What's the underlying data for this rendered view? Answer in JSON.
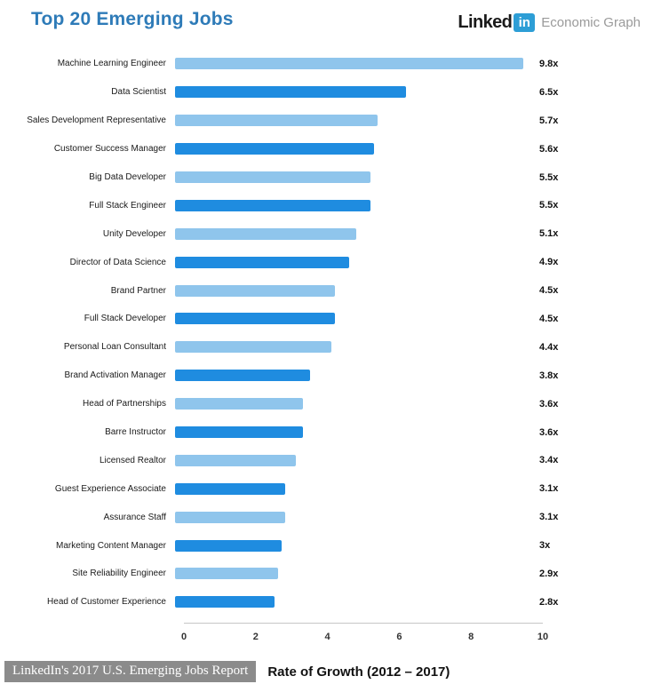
{
  "header": {
    "title": "Top 20 Emerging Jobs",
    "brand": {
      "linked": "Linked",
      "in_badge": "in",
      "suffix": "Economic Graph"
    }
  },
  "chart_data": {
    "type": "bar",
    "orientation": "horizontal",
    "title": "Top 20 Emerging Jobs",
    "xlabel": "Rate of Growth (2012 – 2017)",
    "ylabel": "",
    "xlim": [
      0,
      10
    ],
    "x_ticks": [
      "0",
      "2",
      "4",
      "6",
      "8",
      "10"
    ],
    "grid": false,
    "legend": "none",
    "categories": [
      "Machine Learning Engineer",
      "Data Scientist",
      "Sales Development Representative",
      "Customer Success Manager",
      "Big Data Developer",
      "Full Stack Engineer",
      "Unity Developer",
      "Director of Data Science",
      "Brand Partner",
      "Full Stack Developer",
      "Personal Loan Consultant",
      "Brand Activation Manager",
      "Head of Partnerships",
      "Barre Instructor",
      "Licensed Realtor",
      "Guest Experience Associate",
      "Assurance Staff",
      "Marketing Content Manager",
      "Site Reliability Engineer",
      "Head of Customer Experience"
    ],
    "values": [
      9.8,
      6.5,
      5.7,
      5.6,
      5.5,
      5.5,
      5.1,
      4.9,
      4.5,
      4.5,
      4.4,
      3.8,
      3.6,
      3.6,
      3.4,
      3.1,
      3.1,
      3,
      2.9,
      2.8
    ],
    "value_labels": [
      "9.8x",
      "6.5x",
      "5.7x",
      "5.6x",
      "5.5x",
      "5.5x",
      "5.1x",
      "4.9x",
      "4.5x",
      "4.5x",
      "4.4x",
      "3.8x",
      "3.6x",
      "3.6x",
      "3.4x",
      "3.1x",
      "3.1x",
      "3x",
      "2.9x",
      "2.8x"
    ],
    "bar_colors_alternating": [
      "#8FC5EC",
      "#1F8CE0"
    ]
  },
  "footer": {
    "source_badge": "LinkedIn's 2017 U.S. Emerging Jobs Report",
    "axis_title": "Rate of Growth (2012 – 2017)"
  },
  "colors": {
    "title_blue": "#2E7BB8",
    "bar_light": "#8FC5EC",
    "bar_dark": "#1F8CE0",
    "logo_box_blue": "#2D9ED6",
    "badge_gray": "#8B8B8B",
    "axis_line_gray": "#C6C6C6"
  }
}
